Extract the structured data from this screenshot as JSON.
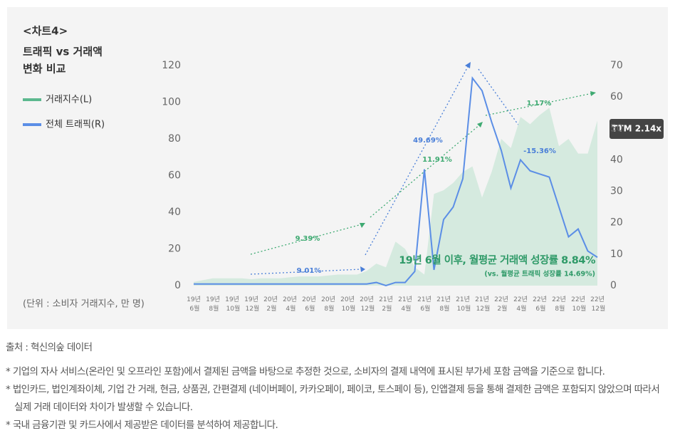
{
  "chart_data": {
    "type": "area-line",
    "title": "<차트4>",
    "subtitle": [
      "트래픽 vs 거래액",
      "변화 비교"
    ],
    "unit_note": "(단위 : 소비자 거래지수, 만 명)",
    "badge": "TTM 2.14x",
    "headline": "19년 6월 이후, 월평균 거래액 성장률 8.84%",
    "headline_sub": "(vs. 월평균 트래픽 성장률 14.69%)",
    "categories": [
      "19년 6월",
      null,
      "19년 8월",
      null,
      "19년 10월",
      null,
      "19년 12월",
      null,
      "20년 2월",
      null,
      "20년 4월",
      null,
      "20년 6월",
      null,
      "20년 8월",
      null,
      "20년 10월",
      null,
      "20년 12월",
      null,
      "21년 2월",
      null,
      "21년 4월",
      null,
      "21년 6월",
      null,
      "21년 8월",
      null,
      "21년 10월",
      null,
      "21년 12월",
      null,
      "22년 2월",
      null,
      "22년 4월",
      null,
      "22년 6월",
      null,
      "22년 8월",
      null,
      "22년 10월",
      null,
      "22년 12월"
    ],
    "series": [
      {
        "name": "거래지수(L)",
        "color": "#5cb88f",
        "fill": "#d5eadf",
        "axis": "y",
        "values": [
          2,
          3,
          4,
          4,
          4,
          4,
          3.5,
          4,
          4,
          4,
          4.5,
          5,
          5,
          5,
          5.5,
          6,
          6,
          6,
          8,
          12,
          10,
          24,
          20,
          10,
          6,
          50,
          52,
          56,
          62,
          65,
          48,
          62,
          80,
          75,
          92,
          88,
          93,
          97,
          76,
          80,
          72,
          72,
          90
        ]
      },
      {
        "name": "전체 트래픽(R)",
        "color": "#5b8ee6",
        "axis": "y2",
        "values": [
          0.5,
          0.5,
          0.5,
          0.5,
          0.5,
          0.5,
          0.5,
          0.5,
          0.5,
          0.5,
          0.5,
          0.5,
          0.5,
          0.5,
          0.5,
          0.5,
          0.5,
          0.5,
          0.5,
          1,
          0,
          1,
          1,
          4.5,
          37,
          5,
          21,
          25,
          34,
          66,
          62,
          52,
          43,
          31,
          40,
          36.5,
          35.5,
          34.5,
          25,
          15.5,
          18,
          11,
          9
        ]
      }
    ],
    "ylim": [
      0,
      120
    ],
    "yticks": [
      0,
      20,
      40,
      60,
      80,
      100,
      120
    ],
    "y2lim": [
      0,
      70
    ],
    "y2ticks": [
      0,
      10,
      20,
      30,
      40,
      50,
      60,
      70
    ],
    "annotations": [
      {
        "text": "9.01%",
        "color": "#4a7fd8"
      },
      {
        "text": "49.69%",
        "color": "#4a7fd8"
      },
      {
        "text": "-15.36%",
        "color": "#4a7fd8"
      },
      {
        "text": "9.39%",
        "color": "#3faa72"
      },
      {
        "text": "11.91%",
        "color": "#3faa72"
      },
      {
        "text": "1.17%",
        "color": "#3faa72"
      }
    ]
  },
  "footer": {
    "source": "출처 : 혁신의숲 데이터",
    "notes": [
      "* 기업의 자사 서비스(온라인 및 오프라인 포함)에서 결제된 금액을 바탕으로 추정한 것으로, 소비자의 결제 내역에 표시된 부가세 포함 금액을 기준으로 합니다.",
      "* 법인카드, 법인계좌이체, 기업 간 거래, 현금, 상품권, 간편결제 (네이버페이, 카카오페이, 페이코, 토스페이 등), 인앱결제 등을 통해 결제한 금액은 포함되지 않았으며 따라서 실제 거래 데이터와 차이가 발생할 수 있습니다.",
      "* 국내 금융기관 및 카드사에서 제공받은 데이터를 분석하여 제공합니다."
    ]
  }
}
